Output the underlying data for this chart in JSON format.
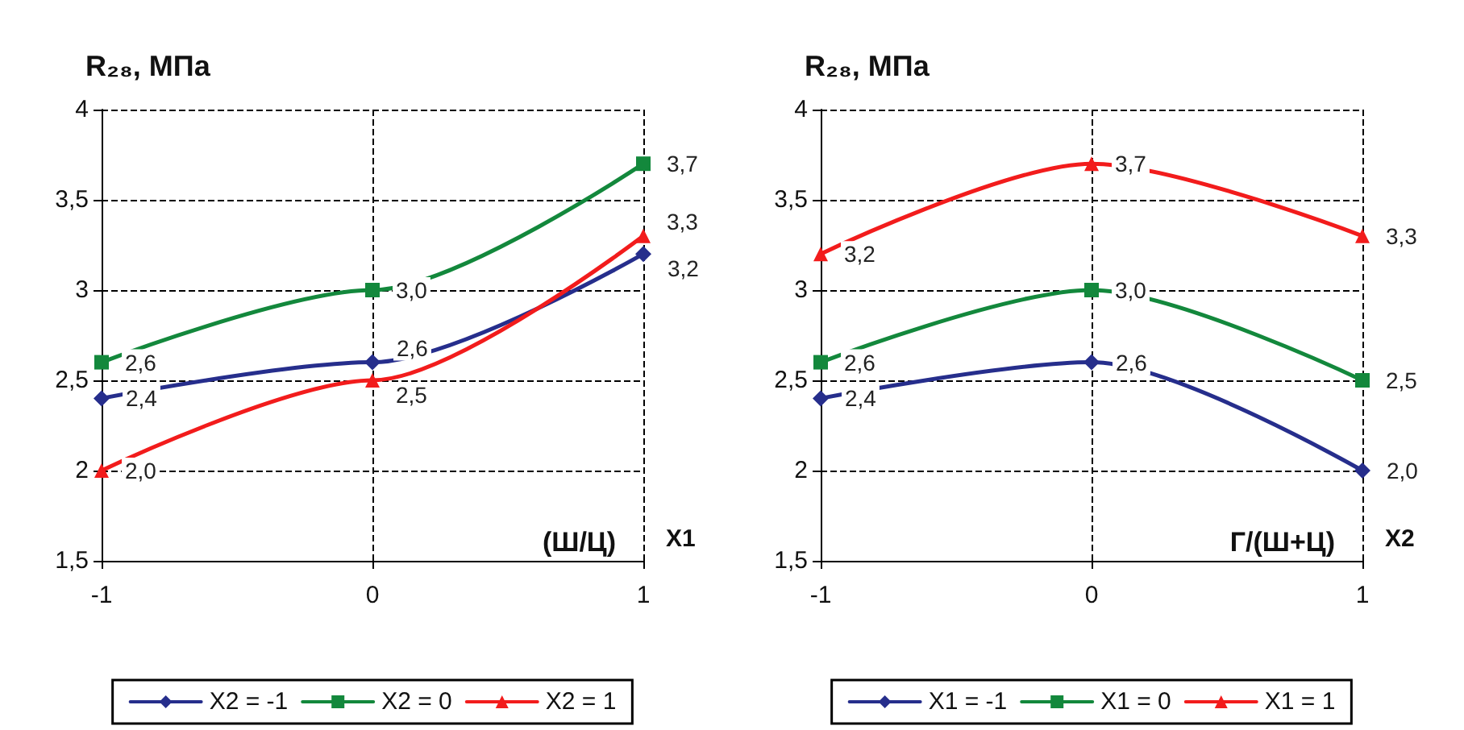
{
  "chart_data": [
    {
      "type": "line",
      "ylabel": "R₂₈, МПа",
      "xlabel": "X1",
      "annotations": [
        "(Ш/Ц)"
      ],
      "x": [
        -1,
        0,
        1
      ],
      "xlim": [
        -1,
        1
      ],
      "xticks": [
        -1,
        0,
        1
      ],
      "ylim": [
        1.5,
        4
      ],
      "yticks": [
        {
          "value": 1.5,
          "label": "1,5"
        },
        2,
        {
          "value": 2.5,
          "label": "2,5"
        },
        3,
        {
          "value": 3.5,
          "label": "3,5"
        },
        4
      ],
      "grid": true,
      "legend": "bottom",
      "line_style": "solid",
      "series": [
        {
          "name": "X2 = -1",
          "color": "#262e8c",
          "marker": "diamond",
          "values": [
            2.4,
            2.6,
            3.2
          ],
          "value_labels": [
            "2,4",
            "2,6",
            "3,2"
          ]
        },
        {
          "name": "X2 = 0",
          "color": "#13883c",
          "marker": "square",
          "values": [
            2.6,
            3.0,
            3.7
          ],
          "value_labels": [
            "2,6",
            "3,0",
            "3,7"
          ]
        },
        {
          "name": "X2 = 1",
          "color": "#f21c1c",
          "marker": "triangle",
          "values": [
            2.0,
            2.5,
            3.3
          ],
          "value_labels": [
            "2,0",
            "2,5",
            "3,3"
          ]
        }
      ]
    },
    {
      "type": "line",
      "ylabel": "R₂₈, МПа",
      "xlabel": "X2",
      "annotations": [
        "Г/(Ш+Ц)"
      ],
      "x": [
        -1,
        0,
        1
      ],
      "xlim": [
        -1,
        1
      ],
      "xticks": [
        -1,
        0,
        1
      ],
      "ylim": [
        1.5,
        4
      ],
      "yticks": [
        {
          "value": 1.5,
          "label": "1,5"
        },
        2,
        {
          "value": 2.5,
          "label": "2,5"
        },
        3,
        {
          "value": 3.5,
          "label": "3,5"
        },
        4
      ],
      "grid": true,
      "legend": "bottom",
      "line_style": "solid",
      "series": [
        {
          "name": "X1 = -1",
          "color": "#262e8c",
          "marker": "diamond",
          "values": [
            2.4,
            2.6,
            2.0
          ],
          "value_labels": [
            "2,4",
            "2,6",
            "2,0"
          ]
        },
        {
          "name": "X1 = 0",
          "color": "#13883c",
          "marker": "square",
          "values": [
            2.6,
            3.0,
            2.5
          ],
          "value_labels": [
            "2,6",
            "3,0",
            "2,5"
          ]
        },
        {
          "name": "X1 = 1",
          "color": "#f21c1c",
          "marker": "triangle",
          "values": [
            3.2,
            3.7,
            3.3
          ],
          "value_labels": [
            "3,2",
            "3,7",
            "3,3"
          ]
        }
      ]
    }
  ]
}
